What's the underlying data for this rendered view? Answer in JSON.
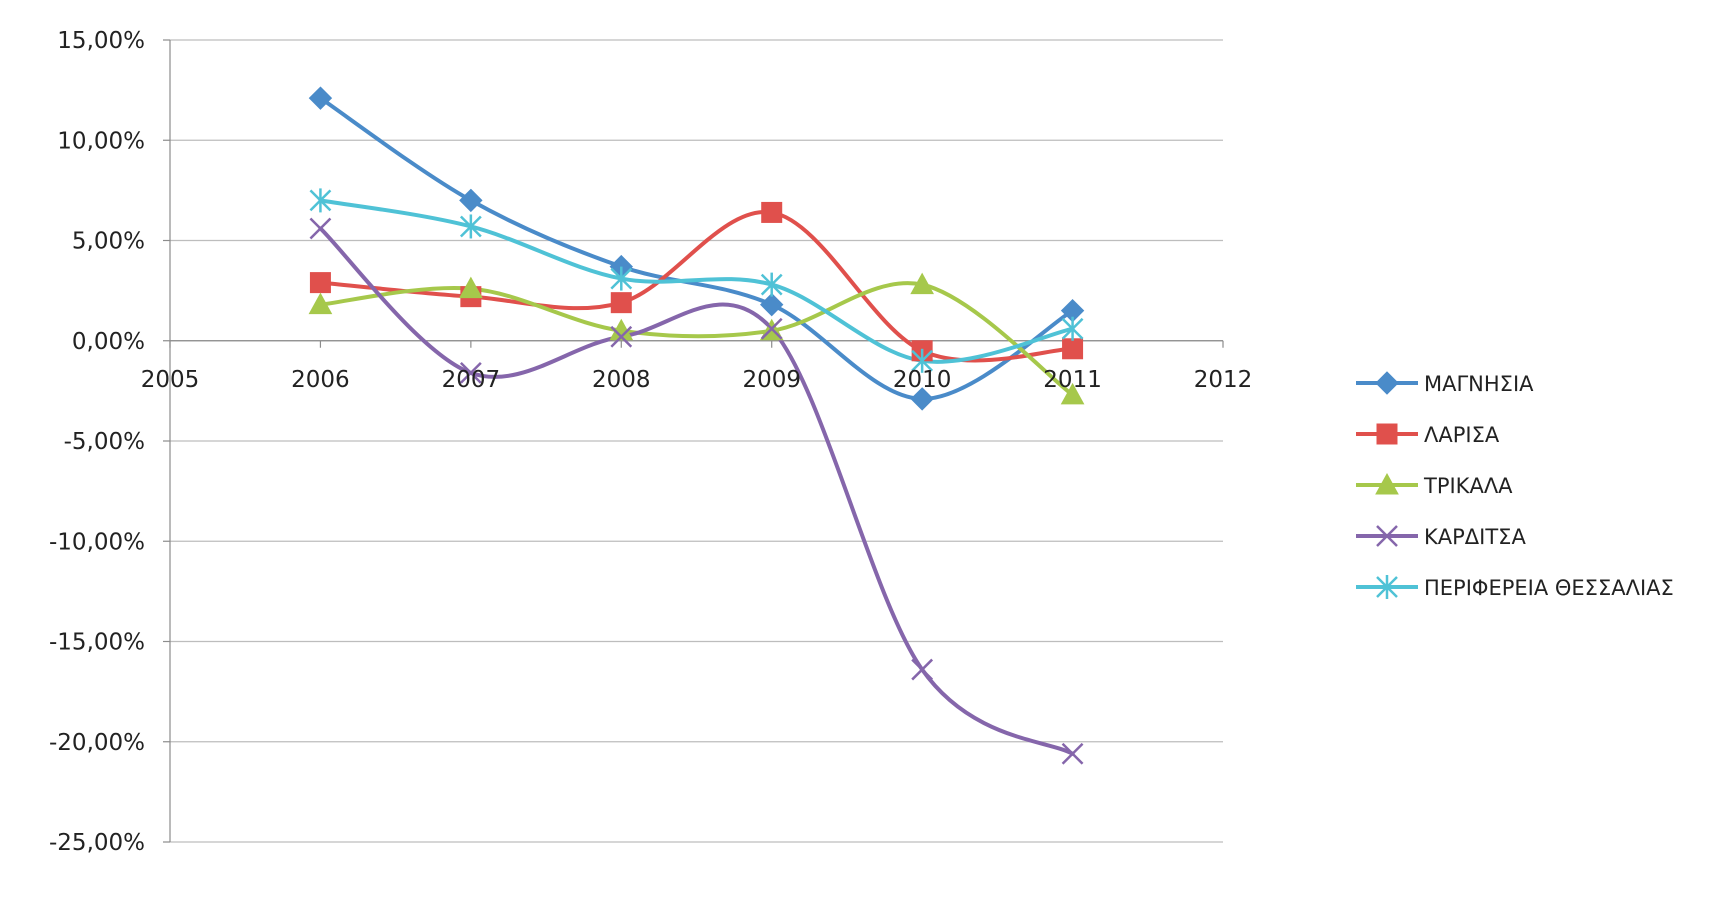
{
  "chart_data": {
    "type": "line",
    "title": "",
    "xlabel": "",
    "ylabel": "",
    "x": [
      2006,
      2007,
      2008,
      2009,
      2010,
      2011
    ],
    "xlim": [
      2005,
      2012
    ],
    "x_ticks": [
      "2005",
      "2006",
      "2007",
      "2008",
      "2009",
      "2010",
      "2011",
      "2012"
    ],
    "ylim": [
      -25,
      15
    ],
    "y_ticks": [
      15,
      10,
      5,
      0,
      -5,
      -10,
      -15,
      -20,
      -25
    ],
    "y_tick_labels": [
      "15,00%",
      "10,00%",
      "5,00%",
      "0,00%",
      "-5,00%",
      "-10,00%",
      "-15,00%",
      "-20,00%",
      "-25,00%"
    ],
    "grid": "horizontal",
    "smooth": true,
    "legend_position": "right",
    "series": [
      {
        "name": "ΜΑΓΝΗΣΙΑ",
        "color": "#4a8bc9",
        "marker": "diamond",
        "values": [
          12.1,
          7.0,
          3.7,
          1.8,
          -2.9,
          1.5
        ]
      },
      {
        "name": "ΛΑΡΙΣΑ",
        "color": "#e0504c",
        "marker": "square",
        "values": [
          2.9,
          2.2,
          1.9,
          6.4,
          -0.5,
          -0.4
        ]
      },
      {
        "name": "ΤΡΙΚΑΛΑ",
        "color": "#a6c84b",
        "marker": "triangle",
        "values": [
          1.8,
          2.6,
          0.5,
          0.5,
          2.8,
          -2.7
        ]
      },
      {
        "name": "ΚΑΡΔΙΤΣΑ",
        "color": "#8566ab",
        "marker": "x",
        "values": [
          5.6,
          -1.6,
          0.2,
          0.6,
          -16.4,
          -20.6
        ]
      },
      {
        "name": "ΠΕΡΙΦΕΡΕΙΑ ΘΕΣΣΑΛΙΑΣ",
        "color": "#4fc2d6",
        "marker": "star",
        "values": [
          7.0,
          5.7,
          3.1,
          2.8,
          -1.0,
          0.6
        ]
      }
    ]
  }
}
